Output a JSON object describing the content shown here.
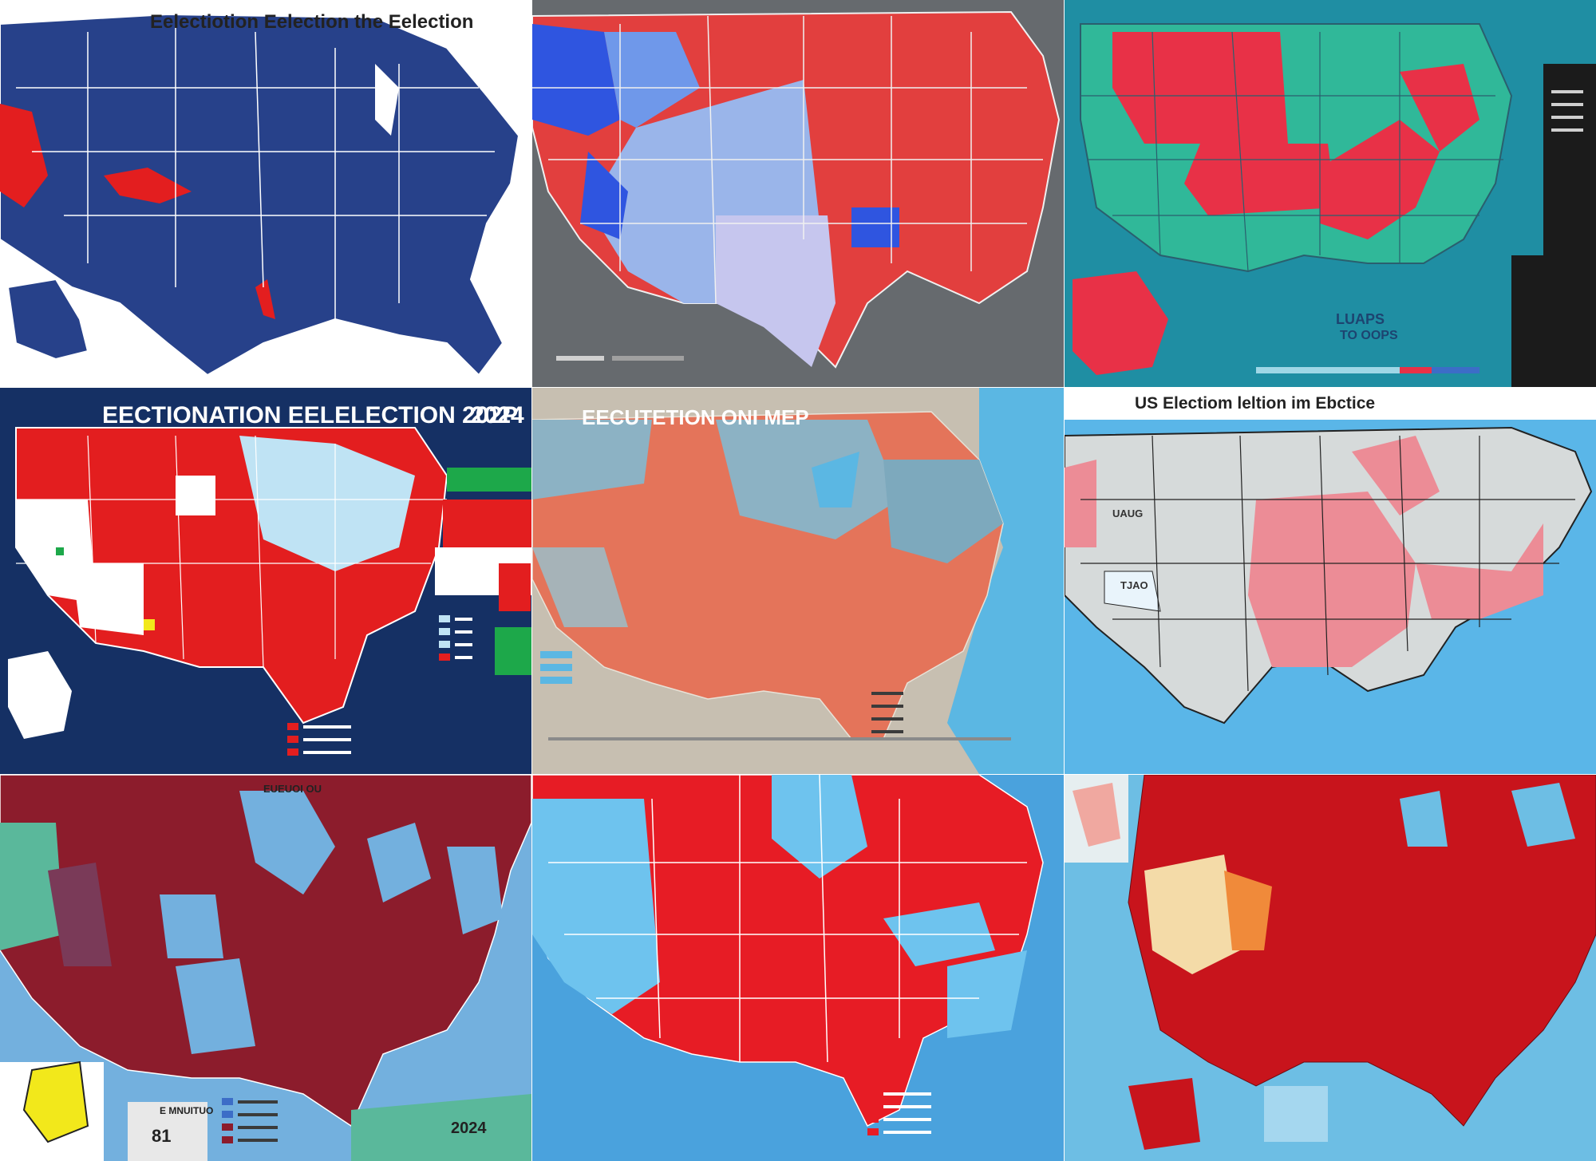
{
  "tiles": [
    {
      "title": "Eelectiotion  Eelection the Eelection",
      "bg": "#ffffff",
      "land": "#27418a",
      "border": "#ffffff"
    },
    {
      "title": "",
      "bg": "#666a6e",
      "land": "#e23f3e",
      "border": "#f0f0f0"
    },
    {
      "title": "",
      "bg": "#1f8ea3",
      "land": "#30b899",
      "border": "#2a5f6e"
    },
    {
      "title": "EECTIONATION EELELECTION 202P",
      "year": "2024",
      "bg": "#153064",
      "land": "#e31e1f",
      "border": "#ffffff"
    },
    {
      "title": "EECUTETION ONI MEP",
      "bg": "#c7bfb1",
      "land": "#e4745a",
      "border": "#e8e2d7"
    },
    {
      "title": "US  Electiom leltion im Ebctice",
      "bg": "#5ab6e8",
      "land": "#d6dada",
      "border": "#222222"
    },
    {
      "title": "EUEUOI OU",
      "bg": "#73b0de",
      "land": "#8c1c2c",
      "border": "#ffffff"
    },
    {
      "title": "",
      "bg": "#4aa2dd",
      "land": "#e71c25",
      "border": "#ffffff"
    },
    {
      "title": "",
      "bg": "#6dbee4",
      "land": "#c8141c",
      "border": "#6e0a10"
    }
  ],
  "chips": {
    "t3_uaps": "LUAPS",
    "t3_toop": "TO OOPS",
    "t7_number": "81",
    "t7_inset_caption": "E MNUITUO",
    "t4_year_prefix": "2024",
    "t6_labels": [
      "UAUG",
      "TJAO"
    ]
  },
  "colors": {
    "red": "#e31e1f",
    "blue": "#27418a",
    "lightblue": "#bfe3f4",
    "green": "#1da84a",
    "yellow": "#f2e81b"
  }
}
